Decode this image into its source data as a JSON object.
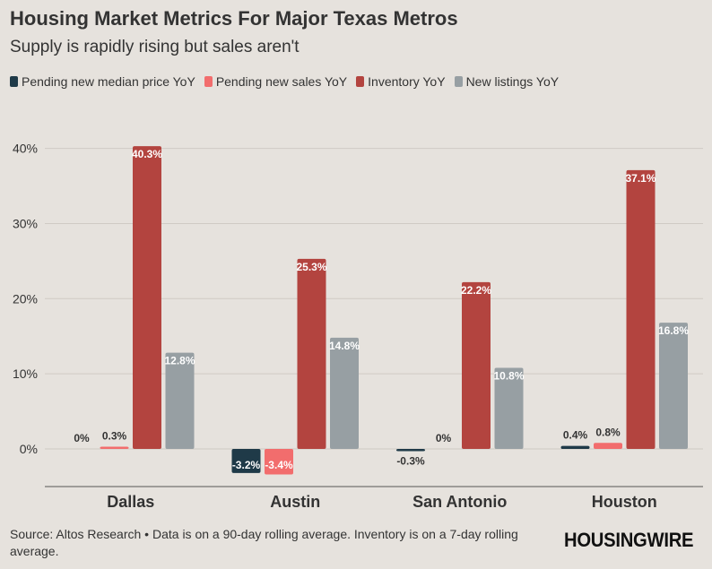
{
  "title": "Housing Market Metrics For Major Texas Metros",
  "subtitle": "Supply is rapidly rising but sales aren't",
  "legend": [
    {
      "label": "Pending new median price YoY",
      "color": "#1f3a48"
    },
    {
      "label": "Pending new sales YoY",
      "color": "#f26d6d"
    },
    {
      "label": "Inventory YoY",
      "color": "#b3443f"
    },
    {
      "label": "New listings YoY",
      "color": "#979fa3"
    }
  ],
  "chart_data": {
    "type": "bar",
    "categories": [
      "Dallas",
      "Austin",
      "San Antonio",
      "Houston"
    ],
    "series": [
      {
        "name": "Pending new median price YoY",
        "color": "#1f3a48",
        "values": [
          0,
          -3.2,
          -0.3,
          0.4
        ],
        "labels": [
          "0%",
          "-3.2%",
          "-0.3%",
          "0.4%"
        ]
      },
      {
        "name": "Pending new sales YoY",
        "color": "#f26d6d",
        "values": [
          0.3,
          -3.4,
          0,
          0.8
        ],
        "labels": [
          "0.3%",
          "-3.4%",
          "0%",
          "0.8%"
        ]
      },
      {
        "name": "Inventory YoY",
        "color": "#b3443f",
        "values": [
          40.3,
          25.3,
          22.2,
          37.1
        ],
        "labels": [
          "40.3%",
          "25.3%",
          "22.2%",
          "37.1%"
        ]
      },
      {
        "name": "New listings YoY",
        "color": "#979fa3",
        "values": [
          12.8,
          14.8,
          10.8,
          16.8
        ],
        "labels": [
          "12.8%",
          "14.8%",
          "10.8%",
          "16.8%"
        ]
      }
    ],
    "yticks": [
      0,
      10,
      20,
      30,
      40
    ],
    "ytick_labels": [
      "0%",
      "10%",
      "20%",
      "30%",
      "40%"
    ],
    "ylim": [
      -5,
      45
    ],
    "title": "Housing Market Metrics For Major Texas Metros",
    "xlabel": "",
    "ylabel": ""
  },
  "source": "Source: Altos Research • Data is on a 90-day rolling average. Inventory is on a 7-day rolling average.",
  "logo": "HOUSINGWIRE"
}
